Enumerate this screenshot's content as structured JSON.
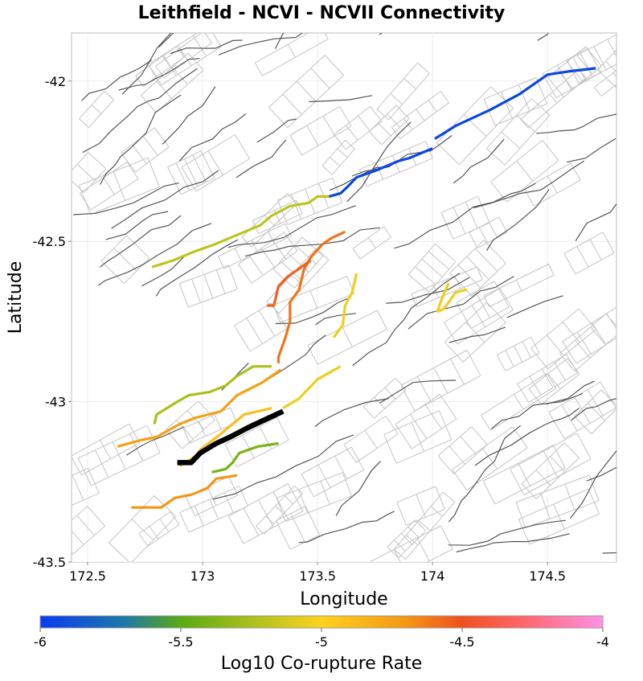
{
  "chart_data": {
    "type": "map",
    "title": "Leithfield - NCVI - NCVII Connectivity",
    "xlabel": "Longitude",
    "ylabel": "Latitude",
    "xlim": [
      172.43,
      174.8
    ],
    "ylim": [
      -43.5,
      -41.85
    ],
    "xticks": [
      172.5,
      173,
      173.5,
      174,
      174.5
    ],
    "xtick_labels": [
      "172.5",
      "173",
      "173.5",
      "174",
      "174.5"
    ],
    "yticks": [
      -42,
      -42.5,
      -43,
      -43.5
    ],
    "ytick_labels": [
      "-42",
      "-42.5",
      "-43",
      "-43.5"
    ],
    "grid": true,
    "colorbar": {
      "label": "Log10 Co-rupture Rate",
      "range": [
        -6,
        -4
      ],
      "ticks": [
        -6,
        -5.5,
        -5,
        -4.5,
        -4
      ],
      "tick_labels": [
        "-6",
        "-5.5",
        "-5",
        "-4.5",
        "-4"
      ],
      "stops": [
        {
          "value": -6.0,
          "color": "#0a3cf2"
        },
        {
          "value": -5.7,
          "color": "#1e78a8"
        },
        {
          "value": -5.5,
          "color": "#5aaa14"
        },
        {
          "value": -5.2,
          "color": "#bcc41e"
        },
        {
          "value": -5.0,
          "color": "#ffd21e"
        },
        {
          "value": -4.7,
          "color": "#f49614"
        },
        {
          "value": -4.5,
          "color": "#f0501e"
        },
        {
          "value": -4.3,
          "color": "#ff6464"
        },
        {
          "value": -4.0,
          "color": "#ff91e6"
        }
      ]
    },
    "source_rupture": {
      "name": "Leithfield",
      "color": "#000000",
      "path": [
        [
          172.89,
          -43.19
        ],
        [
          172.95,
          -43.19
        ],
        [
          172.99,
          -43.16
        ],
        [
          173.06,
          -43.13
        ],
        [
          173.12,
          -43.11
        ],
        [
          173.2,
          -43.08
        ],
        [
          173.29,
          -43.05
        ],
        [
          173.35,
          -43.03
        ]
      ]
    },
    "co_rupture_sections": [
      {
        "rate": -5.95,
        "path": [
          [
            173.55,
            -42.36
          ],
          [
            173.6,
            -42.35
          ],
          [
            173.63,
            -42.33
          ],
          [
            173.67,
            -42.3
          ],
          [
            173.75,
            -42.28
          ],
          [
            173.85,
            -42.25
          ],
          [
            173.9,
            -42.24
          ],
          [
            174.0,
            -42.21
          ]
        ]
      },
      {
        "rate": -5.95,
        "path": [
          [
            174.01,
            -42.18
          ],
          [
            174.1,
            -42.14
          ],
          [
            174.25,
            -42.09
          ],
          [
            174.38,
            -42.04
          ],
          [
            174.5,
            -41.98
          ],
          [
            174.59,
            -41.97
          ],
          [
            174.71,
            -41.96
          ]
        ]
      },
      {
        "rate": -5.2,
        "path": [
          [
            172.78,
            -42.58
          ],
          [
            172.87,
            -42.56
          ],
          [
            172.97,
            -42.53
          ],
          [
            173.05,
            -42.51
          ],
          [
            173.15,
            -42.48
          ],
          [
            173.25,
            -42.45
          ],
          [
            173.3,
            -42.42
          ],
          [
            173.38,
            -42.39
          ],
          [
            173.46,
            -42.38
          ],
          [
            173.5,
            -42.36
          ],
          [
            173.55,
            -42.36
          ]
        ]
      },
      {
        "rate": -4.6,
        "path": [
          [
            173.62,
            -42.47
          ],
          [
            173.56,
            -42.49
          ],
          [
            173.52,
            -42.51
          ],
          [
            173.47,
            -42.55
          ],
          [
            173.44,
            -42.59
          ],
          [
            173.42,
            -42.65
          ],
          [
            173.38,
            -42.69
          ],
          [
            173.38,
            -42.75
          ],
          [
            173.36,
            -42.8
          ],
          [
            173.33,
            -42.86
          ],
          [
            173.33,
            -42.88
          ]
        ]
      },
      {
        "rate": -4.55,
        "path": [
          [
            173.47,
            -42.56
          ],
          [
            173.37,
            -42.61
          ],
          [
            173.33,
            -42.64
          ],
          [
            173.31,
            -42.7
          ],
          [
            173.28,
            -42.7
          ]
        ]
      },
      {
        "rate": -5.05,
        "path": [
          [
            173.67,
            -42.6
          ],
          [
            173.65,
            -42.66
          ],
          [
            173.62,
            -42.7
          ],
          [
            173.61,
            -42.76
          ],
          [
            173.57,
            -42.8
          ]
        ]
      },
      {
        "rate": -5.05,
        "path": [
          [
            174.15,
            -42.65
          ],
          [
            174.1,
            -42.66
          ],
          [
            174.08,
            -42.68
          ],
          [
            174.05,
            -42.71
          ],
          [
            174.02,
            -42.72
          ]
        ]
      },
      {
        "rate": -5.05,
        "path": [
          [
            174.02,
            -42.72
          ],
          [
            174.04,
            -42.68
          ],
          [
            174.07,
            -42.63
          ]
        ]
      },
      {
        "rate": -5.05,
        "path": [
          [
            173.35,
            -43.02
          ],
          [
            173.42,
            -42.99
          ],
          [
            173.5,
            -42.93
          ],
          [
            173.6,
            -42.89
          ]
        ]
      },
      {
        "rate": -5.25,
        "path": [
          [
            172.79,
            -43.07
          ],
          [
            172.8,
            -43.04
          ],
          [
            172.89,
            -43.0
          ],
          [
            172.94,
            -42.98
          ],
          [
            173.03,
            -42.97
          ],
          [
            173.1,
            -42.95
          ],
          [
            173.15,
            -42.92
          ],
          [
            173.22,
            -42.89
          ],
          [
            173.3,
            -42.89
          ]
        ]
      },
      {
        "rate": -4.9,
        "path": [
          [
            173.3,
            -43.02
          ],
          [
            173.18,
            -43.04
          ],
          [
            173.08,
            -43.1
          ],
          [
            172.99,
            -43.15
          ],
          [
            172.97,
            -43.17
          ],
          [
            172.9,
            -43.2
          ]
        ]
      },
      {
        "rate": -4.75,
        "path": [
          [
            173.34,
            -42.9
          ],
          [
            173.26,
            -42.94
          ],
          [
            173.15,
            -42.98
          ],
          [
            173.08,
            -43.03
          ],
          [
            172.97,
            -43.05
          ],
          [
            172.9,
            -43.07
          ],
          [
            172.8,
            -43.11
          ],
          [
            172.73,
            -43.12
          ],
          [
            172.63,
            -43.14
          ]
        ]
      },
      {
        "rate": -5.4,
        "path": [
          [
            173.33,
            -43.13
          ],
          [
            173.24,
            -43.14
          ],
          [
            173.16,
            -43.16
          ],
          [
            173.13,
            -43.19
          ],
          [
            173.1,
            -43.21
          ],
          [
            173.04,
            -43.22
          ]
        ]
      },
      {
        "rate": -4.7,
        "path": [
          [
            173.15,
            -43.23
          ],
          [
            173.06,
            -43.24
          ],
          [
            173.02,
            -43.27
          ],
          [
            172.95,
            -43.29
          ],
          [
            172.88,
            -43.3
          ],
          [
            172.82,
            -43.33
          ],
          [
            172.73,
            -43.33
          ],
          [
            172.69,
            -43.33
          ]
        ]
      }
    ]
  }
}
